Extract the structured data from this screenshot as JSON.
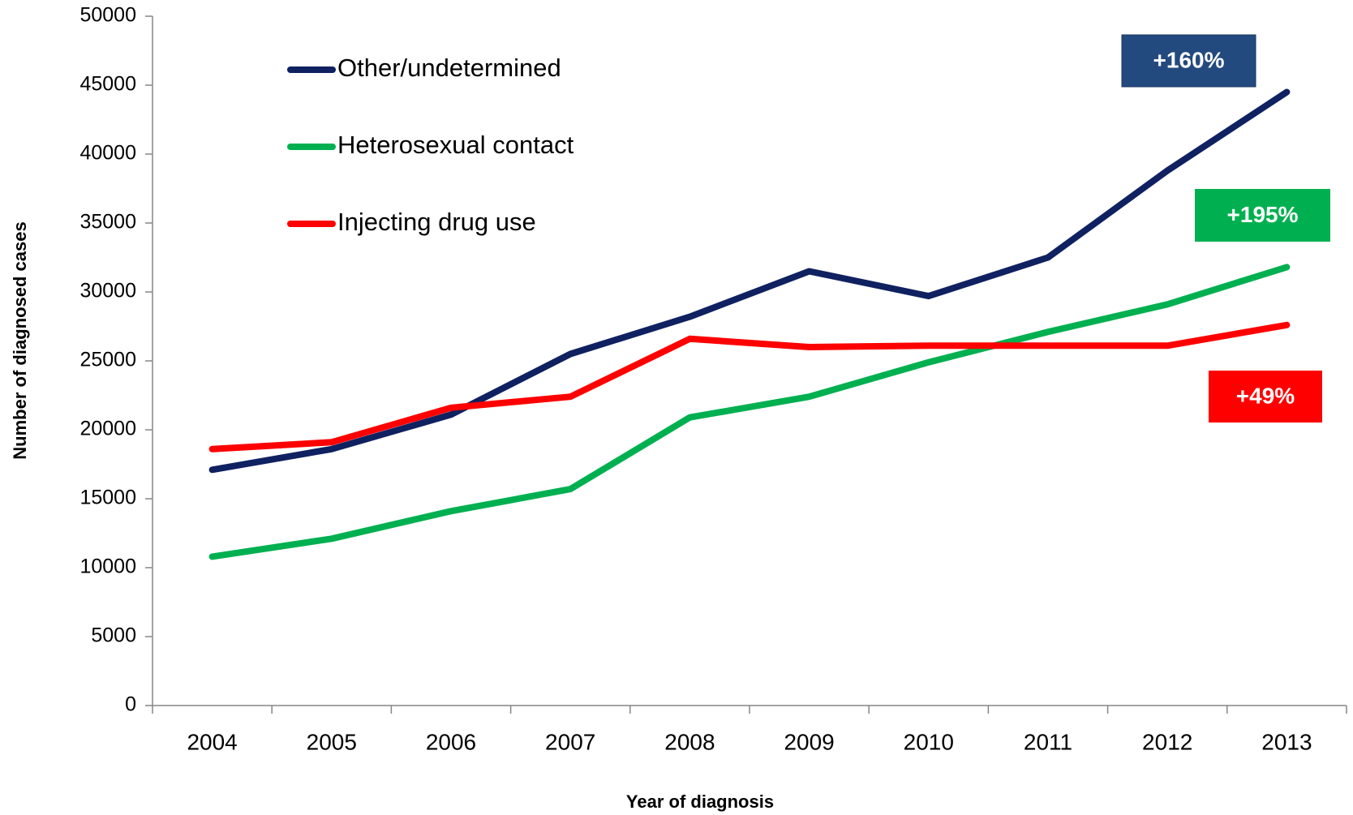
{
  "chart_data": {
    "type": "line",
    "x_label": "Year of diagnosis",
    "y_label": "Number of diagnosed cases",
    "categories": [
      "2004",
      "2005",
      "2006",
      "2007",
      "2008",
      "2009",
      "2010",
      "2011",
      "2012",
      "2013"
    ],
    "series": [
      {
        "name": "Other/undetermined",
        "color": "#0f2160",
        "values": [
          17100,
          18600,
          21100,
          25500,
          28200,
          31500,
          29700,
          32500,
          38800,
          44500
        ]
      },
      {
        "name": "Heterosexual contact",
        "color": "#00b050",
        "values": [
          10800,
          12100,
          14100,
          15700,
          20900,
          22400,
          24900,
          27100,
          29100,
          31800
        ]
      },
      {
        "name": "Injecting drug use",
        "color": "#ff0000",
        "values": [
          18600,
          19100,
          21600,
          22400,
          26600,
          26000,
          26100,
          26100,
          26100,
          27600
        ]
      }
    ],
    "ylim": [
      0,
      50000
    ],
    "yticks": [
      0,
      5000,
      10000,
      15000,
      20000,
      25000,
      30000,
      35000,
      40000,
      45000,
      50000
    ],
    "annotations": [
      {
        "text": "+160%",
        "color": "#234a7e"
      },
      {
        "text": "+195%",
        "color": "#00b050"
      },
      {
        "text": "+49%",
        "color": "#ff0000"
      }
    ],
    "legend": "top-left"
  }
}
